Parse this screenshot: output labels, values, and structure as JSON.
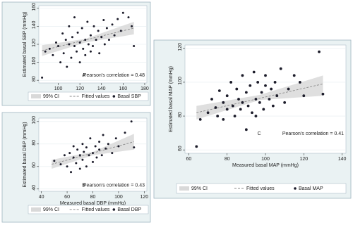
{
  "chart_data": [
    {
      "type": "scatter",
      "panel_label": "A",
      "annotation": "Pearson's correlation = 0.48",
      "xlabel": "Measured basal SBP (mmHg)",
      "ylabel": "Estimated basal SBP (mmHg)",
      "xlim": [
        82,
        182
      ],
      "xticks": [
        100,
        120,
        140,
        160,
        180
      ],
      "ylim": [
        77,
        163
      ],
      "yticks": [
        80,
        100,
        120,
        140,
        160
      ],
      "ci": {
        "name": "99% CI",
        "color": "#d9d9d9",
        "x": [
          85,
          125,
          170
        ],
        "lower": [
          107,
          122,
          131
        ],
        "upper": [
          119,
          126,
          145
        ]
      },
      "fit": {
        "name": "Fitted values",
        "color": "#8a8a8a",
        "x": [
          85,
          170
        ],
        "values": [
          113,
          138
        ]
      },
      "series": [
        {
          "name": "Basal SBP",
          "color": "#1c1c2a",
          "x": [
            85,
            88,
            92,
            95,
            98,
            100,
            102,
            104,
            105,
            107,
            108,
            110,
            110,
            112,
            113,
            115,
            115,
            117,
            118,
            120,
            120,
            122,
            123,
            125,
            125,
            127,
            128,
            130,
            130,
            132,
            133,
            135,
            137,
            138,
            140,
            142,
            143,
            145,
            147,
            150,
            152,
            155,
            158,
            160,
            165,
            168,
            170
          ],
          "values": [
            83,
            112,
            115,
            108,
            122,
            118,
            100,
            132,
            110,
            125,
            95,
            120,
            140,
            105,
            128,
            118,
            150,
            112,
            133,
            122,
            100,
            138,
            115,
            125,
            108,
            145,
            120,
            130,
            112,
            118,
            140,
            125,
            135,
            110,
            128,
            147,
            120,
            138,
            125,
            142,
            130,
            148,
            135,
            155,
            150,
            140,
            118
          ]
        }
      ]
    },
    {
      "type": "scatter",
      "panel_label": "B",
      "annotation": "Pearson's correlation = 0.43",
      "xlabel": "Measured basal DBP (mmHg)",
      "ylabel": "Estimated basal DBP (mmHg)",
      "xlim": [
        38,
        122
      ],
      "xticks": [
        40,
        60,
        80,
        100,
        120
      ],
      "ylim": [
        38,
        103
      ],
      "yticks": [
        40,
        60,
        80,
        100
      ],
      "ci": {
        "name": "99% CI",
        "color": "#d9d9d9",
        "x": [
          48,
          80,
          112
        ],
        "lower": [
          58,
          70,
          75
        ],
        "upper": [
          66,
          73,
          89
        ]
      },
      "fit": {
        "name": "Fitted values",
        "color": "#8a8a8a",
        "x": [
          48,
          112
        ],
        "values": [
          62,
          82
        ]
      },
      "series": [
        {
          "name": "Basal DBP",
          "color": "#1c1c2a",
          "x": [
            50,
            55,
            58,
            60,
            62,
            63,
            65,
            65,
            67,
            68,
            70,
            70,
            72,
            72,
            73,
            75,
            75,
            77,
            78,
            80,
            80,
            82,
            83,
            85,
            85,
            87,
            88,
            90,
            92,
            95,
            98,
            100,
            105,
            110,
            112
          ],
          "values": [
            65,
            62,
            70,
            60,
            72,
            55,
            68,
            78,
            63,
            75,
            58,
            70,
            80,
            66,
            73,
            60,
            77,
            70,
            85,
            64,
            72,
            78,
            68,
            75,
            82,
            70,
            88,
            76,
            80,
            72,
            85,
            78,
            90,
            100,
            77
          ]
        }
      ]
    },
    {
      "type": "scatter",
      "panel_label": "C",
      "annotation": "Pearson's correlation = 0.41",
      "xlabel": "Measured basal MAP (mmHg)",
      "ylabel": "Estimated basal MAP (mmHg)",
      "xlim": [
        58,
        142
      ],
      "xticks": [
        60,
        80,
        100,
        120,
        140
      ],
      "ylim": [
        58,
        122
      ],
      "yticks": [
        60,
        80,
        100,
        120
      ],
      "ci": {
        "name": "99% CI",
        "color": "#d9d9d9",
        "x": [
          64,
          97,
          130
        ],
        "lower": [
          78,
          89.5,
          92
        ],
        "upper": [
          86,
          92.5,
          104
        ]
      },
      "fit": {
        "name": "Fitted values",
        "color": "#8a8a8a",
        "x": [
          64,
          130
        ],
        "values": [
          82,
          99
        ]
      },
      "series": [
        {
          "name": "Basal MAP",
          "color": "#1c1c2a",
          "x": [
            64,
            66,
            70,
            72,
            74,
            75,
            76,
            78,
            78,
            80,
            80,
            82,
            83,
            84,
            85,
            86,
            87,
            88,
            88,
            90,
            90,
            91,
            92,
            93,
            94,
            95,
            95,
            96,
            97,
            98,
            99,
            100,
            100,
            102,
            103,
            104,
            105,
            106,
            108,
            110,
            112,
            115,
            118,
            120,
            128,
            130
          ],
          "values": [
            62,
            78,
            82,
            90,
            85,
            80,
            95,
            88,
            78,
            92,
            84,
            100,
            86,
            80,
            96,
            90,
            84,
            104,
            88,
            72,
            94,
            86,
            98,
            82,
            106,
            90,
            80,
            100,
            88,
            94,
            84,
            98,
            104,
            90,
            96,
            86,
            100,
            92,
            108,
            88,
            96,
            104,
            100,
            92,
            118,
            93
          ]
        }
      ]
    }
  ]
}
